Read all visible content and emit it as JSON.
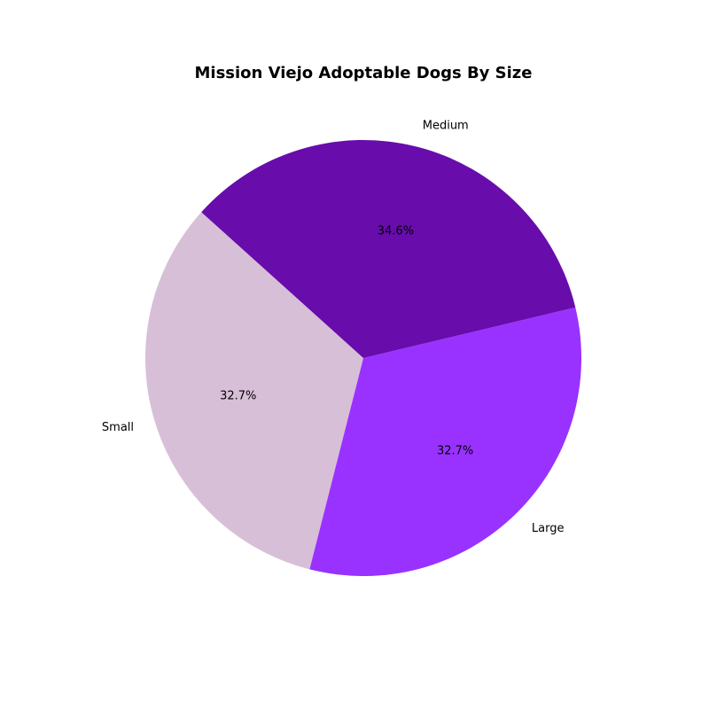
{
  "chart_data": {
    "type": "pie",
    "title": "Mission Viejo Adoptable Dogs By Size",
    "labels": [
      "Small",
      "Large",
      "Medium"
    ],
    "values": [
      32.7,
      32.7,
      34.6
    ],
    "percent_labels": [
      "32.7%",
      "32.7%",
      "34.6%"
    ],
    "colors": [
      "#d8bfd8",
      "#9932ff",
      "#680cab"
    ],
    "start_angle_deg": 138,
    "direction": "counterclockwise",
    "legend": "none"
  }
}
